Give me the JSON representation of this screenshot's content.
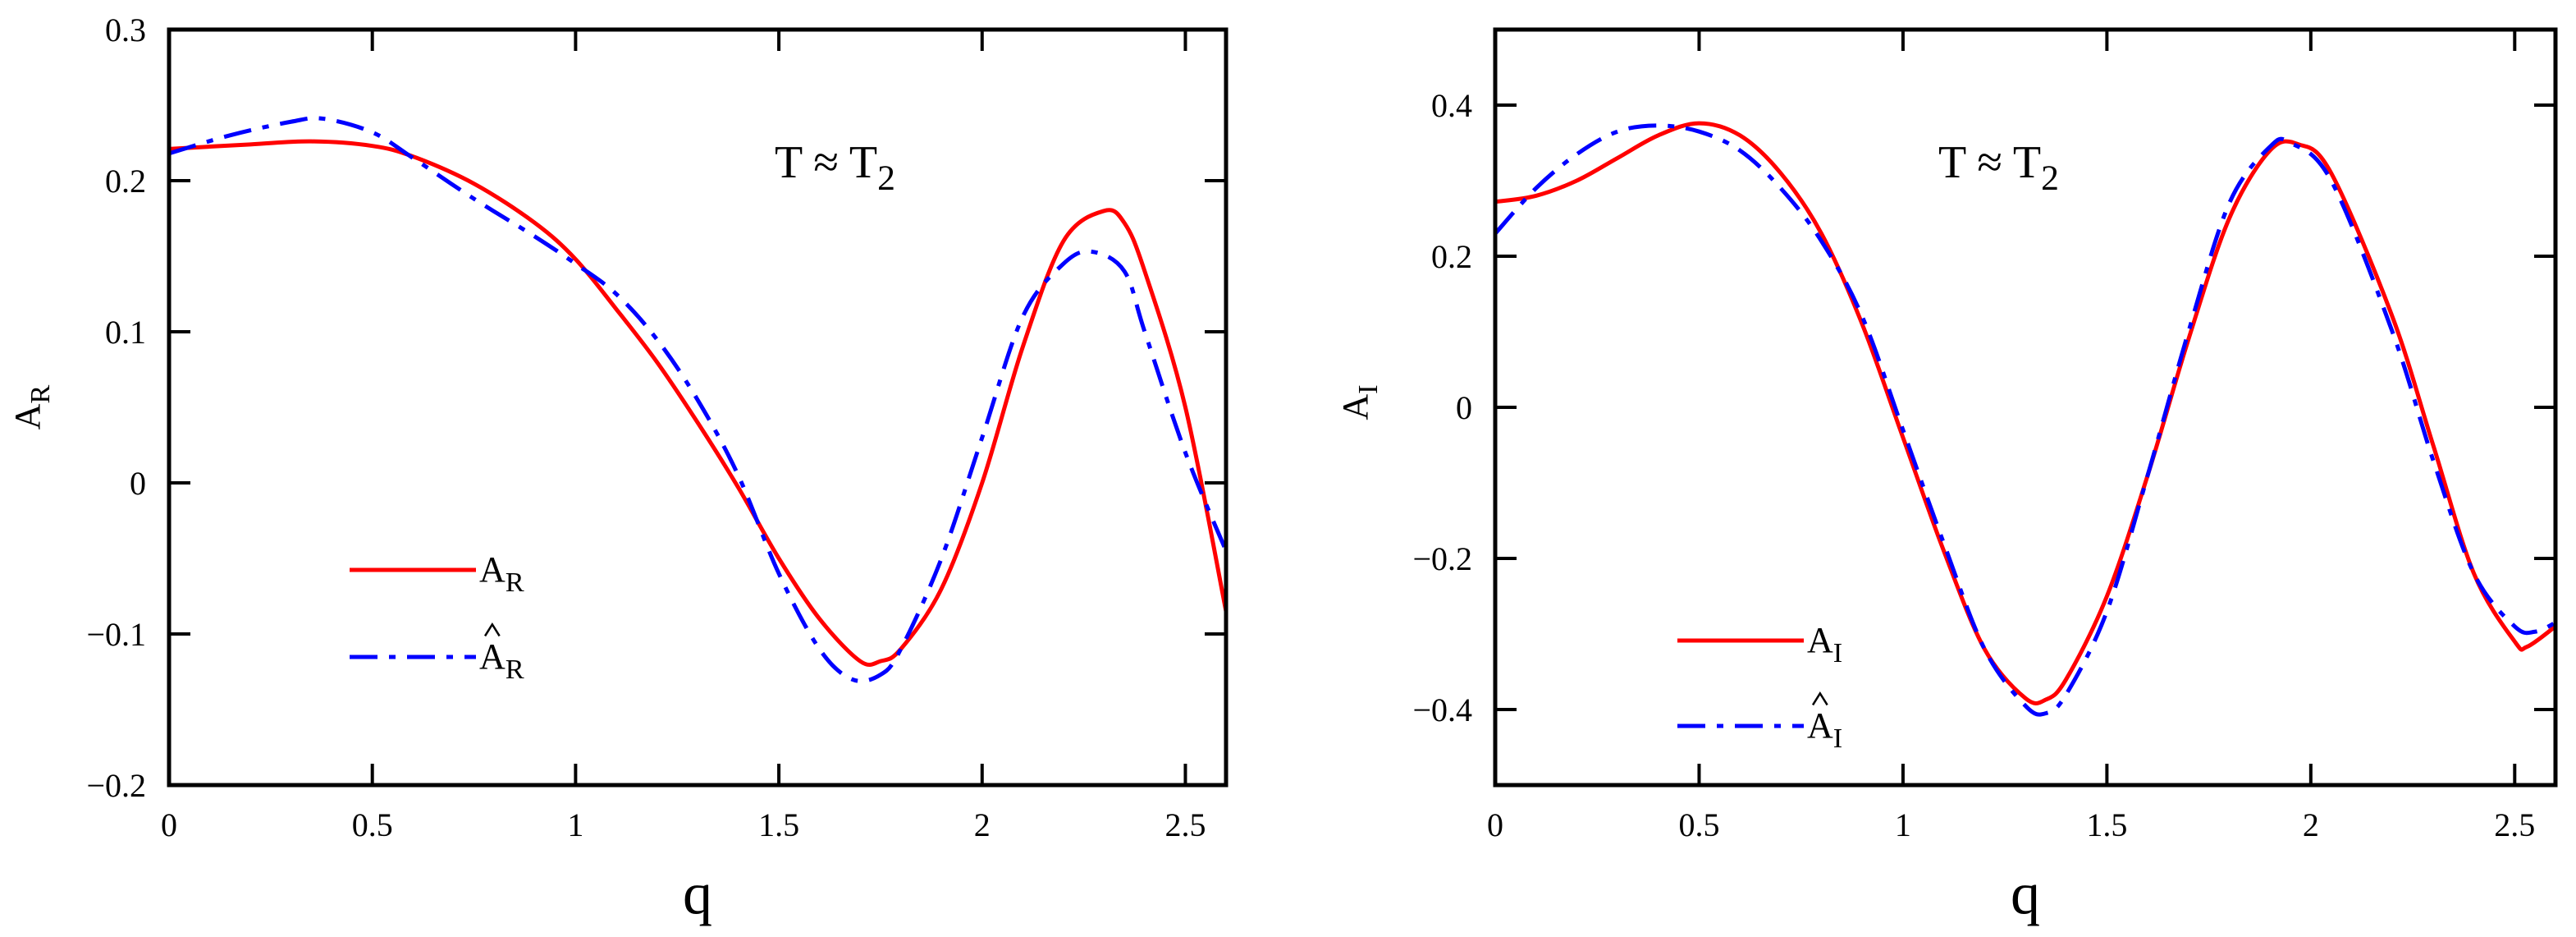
{
  "chart_data": [
    {
      "type": "line",
      "xlabel": "q",
      "ylabel": {
        "main": "A",
        "sub": "R"
      },
      "annotation": {
        "main": "T ≈ T",
        "sub": "2"
      },
      "xlim": [
        0,
        2.6
      ],
      "ylim": [
        -0.2,
        0.3
      ],
      "xticks": [
        0,
        0.5,
        1,
        1.5,
        2,
        2.5
      ],
      "xtick_labels": [
        "0",
        "0.5",
        "1",
        "1.5",
        "2",
        "2.5"
      ],
      "yticks": [
        -0.2,
        -0.1,
        0,
        0.1,
        0.2,
        0.3
      ],
      "ytick_labels": [
        "−0.2",
        "−0.1",
        "0",
        "0.1",
        "0.2",
        "0.3"
      ],
      "legend_placement": "lower-left",
      "series": [
        {
          "name": "A_R",
          "label": {
            "main": "A",
            "sub": "R",
            "hat": false
          },
          "color": "#ff0000",
          "style": "solid",
          "x": [
            0,
            0.2,
            0.35,
            0.5,
            0.6,
            0.75,
            0.9,
            1.0,
            1.1,
            1.2,
            1.3,
            1.4,
            1.5,
            1.6,
            1.7,
            1.75,
            1.8,
            1.9,
            2.0,
            2.1,
            2.2,
            2.3,
            2.35,
            2.4,
            2.5,
            2.6
          ],
          "y": [
            0.221,
            0.224,
            0.226,
            0.223,
            0.216,
            0.198,
            0.172,
            0.148,
            0.115,
            0.08,
            0.04,
            -0.003,
            -0.05,
            -0.09,
            -0.118,
            -0.118,
            -0.11,
            -0.07,
            0.0,
            0.09,
            0.16,
            0.18,
            0.172,
            0.14,
            0.05,
            -0.085
          ]
        },
        {
          "name": "Â_R",
          "label": {
            "main": "A",
            "sub": "R",
            "hat": true
          },
          "color": "#0000ff",
          "style": "dashdot",
          "x": [
            0,
            0.15,
            0.3,
            0.38,
            0.5,
            0.6,
            0.75,
            0.9,
            1.0,
            1.1,
            1.2,
            1.3,
            1.4,
            1.5,
            1.6,
            1.68,
            1.75,
            1.8,
            1.9,
            2.0,
            2.1,
            2.2,
            2.27,
            2.35,
            2.4,
            2.5,
            2.6
          ],
          "y": [
            0.218,
            0.23,
            0.239,
            0.241,
            0.232,
            0.215,
            0.188,
            0.163,
            0.145,
            0.125,
            0.095,
            0.055,
            0.005,
            -0.06,
            -0.11,
            -0.13,
            -0.127,
            -0.11,
            -0.05,
            0.03,
            0.11,
            0.145,
            0.153,
            0.14,
            0.1,
            0.02,
            -0.045
          ]
        }
      ]
    },
    {
      "type": "line",
      "xlabel": "q",
      "ylabel": {
        "main": "A",
        "sub": "I"
      },
      "annotation": {
        "main": "T ≈ T",
        "sub": "2"
      },
      "xlim": [
        0,
        2.6
      ],
      "ylim": [
        -0.5,
        0.5
      ],
      "xticks": [
        0,
        0.5,
        1,
        1.5,
        2,
        2.5
      ],
      "xtick_labels": [
        "0",
        "0.5",
        "1",
        "1.5",
        "2",
        "2.5"
      ],
      "yticks": [
        -0.4,
        -0.2,
        0,
        0.2,
        0.4
      ],
      "ytick_labels": [
        "−0.4",
        "−0.2",
        "0",
        "0.2",
        "0.4"
      ],
      "legend_placement": "lower-left",
      "series": [
        {
          "name": "A_I",
          "label": {
            "main": "A",
            "sub": "I",
            "hat": false
          },
          "color": "#ff0000",
          "style": "solid",
          "x": [
            0,
            0.1,
            0.2,
            0.3,
            0.4,
            0.5,
            0.6,
            0.7,
            0.8,
            0.9,
            1.0,
            1.1,
            1.2,
            1.3,
            1.35,
            1.4,
            1.5,
            1.6,
            1.7,
            1.8,
            1.9,
            1.97,
            2.05,
            2.2,
            2.3,
            2.4,
            2.5,
            2.53,
            2.6
          ],
          "y": [
            0.272,
            0.28,
            0.3,
            0.33,
            0.36,
            0.376,
            0.36,
            0.31,
            0.23,
            0.11,
            -0.04,
            -0.19,
            -0.32,
            -0.385,
            -0.387,
            -0.36,
            -0.25,
            -0.09,
            0.09,
            0.25,
            0.34,
            0.348,
            0.31,
            0.12,
            -0.05,
            -0.22,
            -0.31,
            -0.317,
            -0.29
          ]
        },
        {
          "name": "Â_I",
          "label": {
            "main": "A",
            "sub": "I",
            "hat": true
          },
          "color": "#0000ff",
          "style": "dashdot",
          "x": [
            0,
            0.1,
            0.2,
            0.3,
            0.4,
            0.5,
            0.6,
            0.7,
            0.8,
            0.9,
            1.0,
            1.1,
            1.2,
            1.3,
            1.35,
            1.4,
            1.5,
            1.6,
            1.7,
            1.8,
            1.9,
            1.95,
            2.05,
            2.2,
            2.3,
            2.4,
            2.5,
            2.55,
            2.6
          ],
          "y": [
            0.23,
            0.29,
            0.335,
            0.365,
            0.373,
            0.365,
            0.34,
            0.29,
            0.22,
            0.12,
            -0.03,
            -0.18,
            -0.32,
            -0.395,
            -0.405,
            -0.38,
            -0.27,
            -0.09,
            0.1,
            0.27,
            0.345,
            0.35,
            0.3,
            0.1,
            -0.07,
            -0.22,
            -0.29,
            -0.297,
            -0.285
          ]
        }
      ]
    }
  ]
}
